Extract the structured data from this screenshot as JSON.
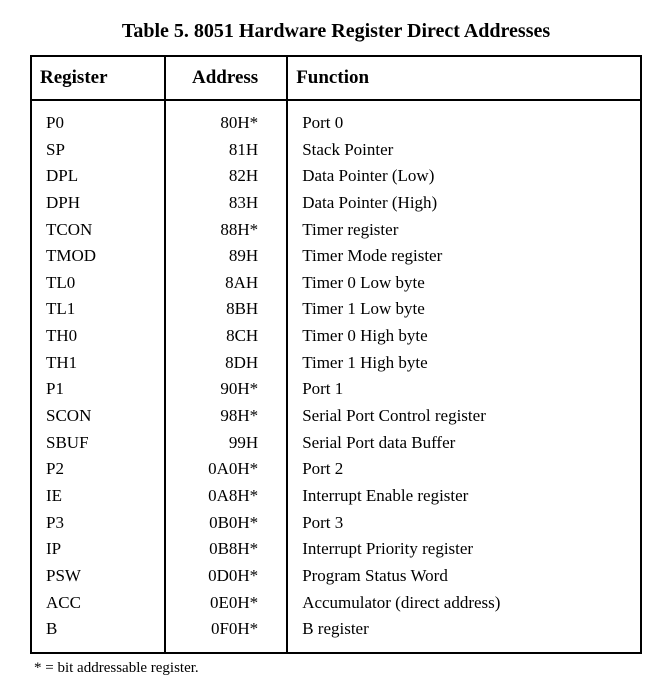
{
  "title": "Table 5. 8051 Hardware Register Direct Addresses",
  "columns": [
    "Register",
    "Address",
    "Function"
  ],
  "rows": [
    {
      "register": "P0",
      "address": "80H*",
      "function": "Port 0"
    },
    {
      "register": "SP",
      "address": "81H",
      "function": "Stack Pointer"
    },
    {
      "register": "DPL",
      "address": "82H",
      "function": "Data Pointer (Low)"
    },
    {
      "register": "DPH",
      "address": "83H",
      "function": "Data Pointer (High)"
    },
    {
      "register": "TCON",
      "address": "88H*",
      "function": "Timer register"
    },
    {
      "register": "TMOD",
      "address": "89H",
      "function": "Timer Mode register"
    },
    {
      "register": "TL0",
      "address": "8AH",
      "function": "Timer 0 Low byte"
    },
    {
      "register": "TL1",
      "address": "8BH",
      "function": "Timer 1 Low byte"
    },
    {
      "register": "TH0",
      "address": "8CH",
      "function": "Timer 0 High byte"
    },
    {
      "register": "TH1",
      "address": "8DH",
      "function": "Timer 1 High byte"
    },
    {
      "register": "P1",
      "address": "90H*",
      "function": "Port 1"
    },
    {
      "register": "SCON",
      "address": "98H*",
      "function": "Serial Port Control register"
    },
    {
      "register": "SBUF",
      "address": "99H",
      "function": "Serial Port data Buffer"
    },
    {
      "register": "P2",
      "address": "0A0H*",
      "function": "Port 2"
    },
    {
      "register": "IE",
      "address": "0A8H*",
      "function": "Interrupt Enable register"
    },
    {
      "register": "P3",
      "address": "0B0H*",
      "function": "Port 3"
    },
    {
      "register": "IP",
      "address": "0B8H*",
      "function": "Interrupt Priority register"
    },
    {
      "register": "PSW",
      "address": "0D0H*",
      "function": "Program Status Word"
    },
    {
      "register": "ACC",
      "address": "0E0H*",
      "function": "Accumulator (direct address)"
    },
    {
      "register": "B",
      "address": "0F0H*",
      "function": "B register"
    }
  ],
  "footnote": "* = bit addressable register.",
  "styling": {
    "type": "table",
    "background_color": "#ffffff",
    "border_color": "#000000",
    "border_width": 2.5,
    "text_color": "#000000",
    "title_fontsize": 20,
    "title_fontweight": "bold",
    "header_fontsize": 19,
    "header_fontweight": "bold",
    "body_fontsize": 17,
    "footnote_fontsize": 15,
    "font_family": "Times New Roman",
    "column_widths_pct": [
      22,
      20,
      58
    ],
    "column_align": [
      "left",
      "right",
      "left"
    ]
  }
}
